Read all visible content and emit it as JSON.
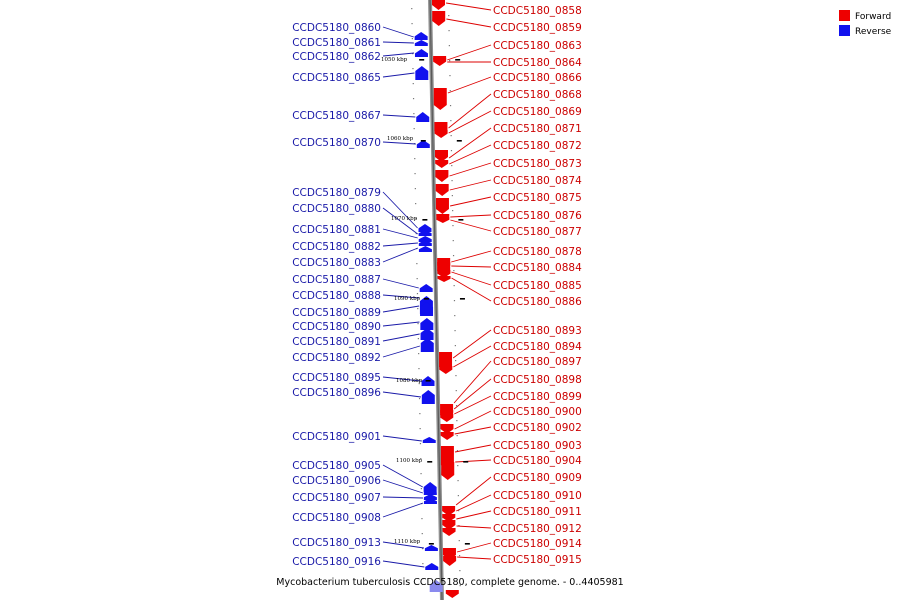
{
  "legend": {
    "forward_label": "Forward",
    "reverse_label": "Reverse",
    "forward_color": "#ee0000",
    "reverse_color": "#1111ee"
  },
  "caption": "Mycobacterium tuberculosis CCDC5180, complete genome. - 0..4405981",
  "scale_ticks": [
    "1050 kbp",
    "1060 kbp",
    "1070 kbp",
    "1080 kbp",
    "1090 kbp",
    "1100 kbp",
    "1110 kbp"
  ],
  "forward_genes": [
    "CCDC5180_0858",
    "CCDC5180_0859",
    "CCDC5180_0863",
    "CCDC5180_0864",
    "CCDC5180_0866",
    "CCDC5180_0868",
    "CCDC5180_0869",
    "CCDC5180_0871",
    "CCDC5180_0872",
    "CCDC5180_0873",
    "CCDC5180_0874",
    "CCDC5180_0875",
    "CCDC5180_0876",
    "CCDC5180_0877",
    "CCDC5180_0878",
    "CCDC5180_0884",
    "CCDC5180_0885",
    "CCDC5180_0886",
    "CCDC5180_0893",
    "CCDC5180_0894",
    "CCDC5180_0897",
    "CCDC5180_0898",
    "CCDC5180_0899",
    "CCDC5180_0900",
    "CCDC5180_0902",
    "CCDC5180_0903",
    "CCDC5180_0904",
    "CCDC5180_0909",
    "CCDC5180_0910",
    "CCDC5180_0911",
    "CCDC5180_0912",
    "CCDC5180_0914",
    "CCDC5180_0915"
  ],
  "reverse_genes": [
    "CCDC5180_0860",
    "CCDC5180_0861",
    "CCDC5180_0862",
    "CCDC5180_0865",
    "CCDC5180_0867",
    "CCDC5180_0870",
    "CCDC5180_0879",
    "CCDC5180_0880",
    "CCDC5180_0881",
    "CCDC5180_0882",
    "CCDC5180_0883",
    "CCDC5180_0887",
    "CCDC5180_0888",
    "CCDC5180_0889",
    "CCDC5180_0890",
    "CCDC5180_0891",
    "CCDC5180_0892",
    "CCDC5180_0895",
    "CCDC5180_0896",
    "CCDC5180_0901",
    "CCDC5180_0905",
    "CCDC5180_0906",
    "CCDC5180_0907",
    "CCDC5180_0908",
    "CCDC5180_0913",
    "CCDC5180_0916"
  ]
}
